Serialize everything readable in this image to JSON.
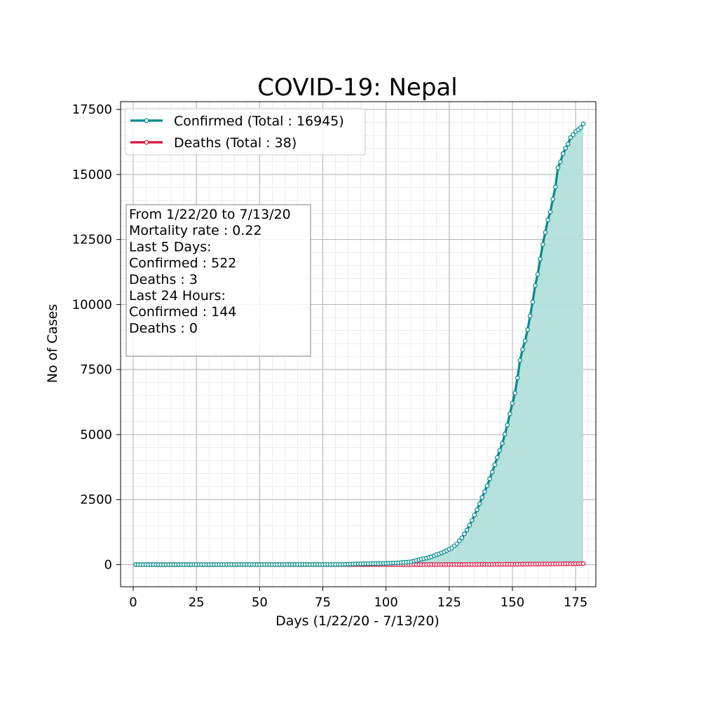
{
  "chart_data": {
    "type": "line",
    "title": "COVID-19: Nepal",
    "xlabel": "Days (1/22/20 - 7/13/20)",
    "ylabel": "No of Cases",
    "xlim": [
      -5,
      183
    ],
    "ylim": [
      -850,
      17800
    ],
    "xticks": [
      0,
      25,
      50,
      75,
      100,
      125,
      150,
      175
    ],
    "yticks": [
      0,
      2500,
      5000,
      7500,
      10000,
      12500,
      15000,
      17500
    ],
    "grid": true,
    "minor_grid": true,
    "legend_position": "top-left",
    "area_fill_series": "Confirmed (Total : 16945)",
    "series": [
      {
        "name": "Confirmed (Total : 16945)",
        "color": "#008b8b",
        "fill_color": "#b2dfdb",
        "points": [
          [
            1,
            0
          ],
          [
            82,
            5
          ],
          [
            90,
            30
          ],
          [
            100,
            50
          ],
          [
            105,
            70
          ],
          [
            110,
            110
          ],
          [
            112,
            160
          ],
          [
            114,
            210
          ],
          [
            116,
            250
          ],
          [
            118,
            300
          ],
          [
            120,
            380
          ],
          [
            122,
            450
          ],
          [
            124,
            540
          ],
          [
            126,
            640
          ],
          [
            128,
            800
          ],
          [
            130,
            1030
          ],
          [
            132,
            1330
          ],
          [
            134,
            1700
          ],
          [
            136,
            2110
          ],
          [
            138,
            2580
          ],
          [
            140,
            3030
          ],
          [
            142,
            3560
          ],
          [
            144,
            4120
          ],
          [
            146,
            4660
          ],
          [
            148,
            5370
          ],
          [
            149,
            5800
          ],
          [
            150,
            6200
          ],
          [
            151,
            6600
          ],
          [
            152,
            7180
          ],
          [
            153,
            7850
          ],
          [
            154,
            8270
          ],
          [
            155,
            8600
          ],
          [
            156,
            9030
          ],
          [
            157,
            9560
          ],
          [
            158,
            10100
          ],
          [
            159,
            10730
          ],
          [
            160,
            11160
          ],
          [
            161,
            11750
          ],
          [
            162,
            12310
          ],
          [
            163,
            12770
          ],
          [
            164,
            13250
          ],
          [
            165,
            13560
          ],
          [
            166,
            14050
          ],
          [
            167,
            14520
          ],
          [
            168,
            15260
          ],
          [
            169,
            15490
          ],
          [
            170,
            15800
          ],
          [
            171,
            16010
          ],
          [
            172,
            16170
          ],
          [
            173,
            16420
          ],
          [
            174,
            16530
          ],
          [
            175,
            16650
          ],
          [
            176,
            16720
          ],
          [
            177,
            16800
          ],
          [
            178,
            16945
          ]
        ]
      },
      {
        "name": "Deaths (Total : 38)",
        "color": "#dc143c",
        "fill_color": "",
        "points": [
          [
            1,
            0
          ],
          [
            110,
            0
          ],
          [
            120,
            2
          ],
          [
            130,
            4
          ],
          [
            140,
            8
          ],
          [
            150,
            14
          ],
          [
            160,
            22
          ],
          [
            170,
            30
          ],
          [
            174,
            34
          ],
          [
            178,
            38
          ]
        ]
      }
    ],
    "annotation_lines": [
      "From 1/22/20 to 7/13/20",
      "Mortality rate : 0.22",
      "Last 5 Days:",
      "Confirmed : 522",
      "Deaths : 3",
      "Last 24 Hours:",
      "Confirmed : 144",
      "Deaths : 0"
    ]
  }
}
